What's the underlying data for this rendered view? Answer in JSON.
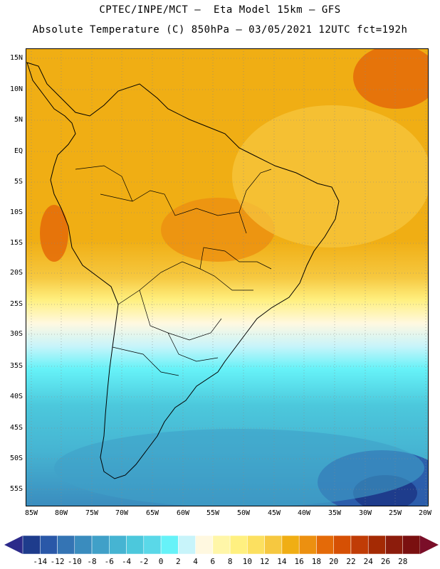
{
  "title": {
    "line1": "CPTEC/INPE/MCT —  Eta Model 15km — GFS",
    "line2": "Absolute Temperature (C) 850hPa — 03/05/2021 12UTC fct=192h"
  },
  "map": {
    "lat_labels": [
      "15N",
      "10N",
      "5N",
      "EQ",
      "5S",
      "10S",
      "15S",
      "20S",
      "25S",
      "30S",
      "35S",
      "40S",
      "45S",
      "50S",
      "55S"
    ],
    "lon_labels": [
      "85W",
      "80W",
      "75W",
      "70W",
      "65W",
      "60W",
      "55W",
      "50W",
      "45W",
      "40W",
      "35W",
      "30W",
      "25W",
      "20W"
    ],
    "lat_range": [
      -58,
      16
    ],
    "lon_range": [
      -86,
      -19
    ],
    "grid": "dotted"
  },
  "colorbar": {
    "labels": [
      "-14",
      "-12",
      "-10",
      "-8",
      "-6",
      "-4",
      "-2",
      "0",
      "2",
      "4",
      "6",
      "8",
      "10",
      "12",
      "14",
      "16",
      "18",
      "20",
      "22",
      "24",
      "26",
      "28"
    ],
    "colors": [
      "#1e3c8c",
      "#2a58a8",
      "#3474b4",
      "#3a8cbe",
      "#40a0c8",
      "#46b4d2",
      "#4cc8dc",
      "#5ad8e8",
      "#66f2f8",
      "#c8f4fa",
      "#fff8e0",
      "#fff6a8",
      "#fff080",
      "#fce060",
      "#f6c840",
      "#f0ae14",
      "#ec9010",
      "#e46a08",
      "#d65004",
      "#c03c06",
      "#a42a04",
      "#8c1c0c",
      "#7a1010"
    ],
    "left_arrow_color": "#2c2a8a",
    "right_arrow_color": "#7a0e28"
  }
}
